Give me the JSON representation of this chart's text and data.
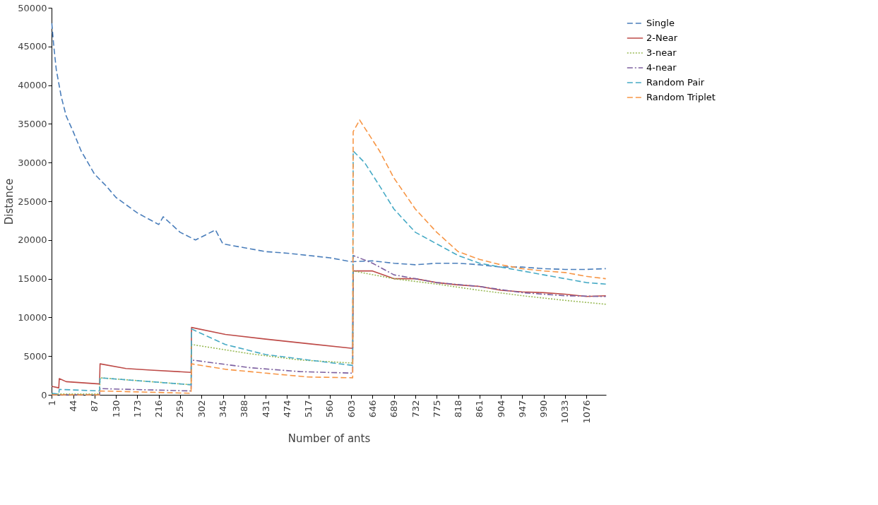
{
  "chart_data": {
    "type": "line",
    "xlabel": "Number of ants",
    "ylabel": "Distance",
    "xlim": [
      0.5,
      1115.5
    ],
    "xticks": [
      1,
      44,
      87,
      130,
      173,
      216,
      259,
      302,
      345,
      388,
      431,
      474,
      517,
      560,
      603,
      646,
      689,
      732,
      775,
      818,
      861,
      904,
      947,
      990,
      1033,
      1076
    ],
    "ylim": [
      0,
      50000
    ],
    "yticks": [
      0,
      5000,
      10000,
      15000,
      20000,
      25000,
      30000,
      35000,
      40000,
      45000,
      50000
    ],
    "grid": false,
    "legend": "right",
    "marker": "none",
    "series": [
      {
        "name": "Single",
        "color": "#4a7ebb",
        "line_style": "dashed",
        "x": [
          1,
          5,
          10,
          20,
          30,
          44,
          60,
          87,
          110,
          130,
          173,
          216,
          225,
          259,
          290,
          330,
          345,
          388,
          431,
          474,
          517,
          560,
          603,
          646,
          689,
          732,
          775,
          818,
          861,
          904,
          947,
          990,
          1033,
          1076,
          1115
        ],
        "values": [
          48000,
          45000,
          42000,
          38500,
          36000,
          34000,
          31500,
          28500,
          27000,
          25500,
          23500,
          22000,
          23000,
          21000,
          20000,
          21300,
          19500,
          19000,
          18500,
          18300,
          18000,
          17700,
          17200,
          17300,
          17000,
          16800,
          17000,
          17000,
          16800,
          16500,
          16500,
          16300,
          16200,
          16200,
          16300
        ]
      },
      {
        "name": "2-Near",
        "color": "#be4b48",
        "line_style": "solid",
        "x": [
          1,
          15,
          16,
          30,
          97,
          98,
          150,
          200,
          281,
          282,
          350,
          431,
          517,
          606,
          607,
          646,
          689,
          732,
          775,
          818,
          861,
          904,
          947,
          990,
          1033,
          1076,
          1115
        ],
        "values": [
          1100,
          900,
          2100,
          1700,
          1400,
          4000,
          3400,
          3200,
          2900,
          8700,
          7800,
          7200,
          6600,
          6000,
          16000,
          16000,
          15000,
          15000,
          14500,
          14200,
          14000,
          13500,
          13300,
          13200,
          13000,
          12700,
          12800
        ]
      },
      {
        "name": "3-near",
        "color": "#98b954",
        "line_style": "dotted",
        "x": [
          1,
          97,
          98,
          281,
          282,
          400,
          500,
          606,
          607,
          689,
          775,
          861,
          947,
          1033,
          1115
        ],
        "values": [
          100,
          100,
          2200,
          1300,
          6500,
          5300,
          4500,
          4100,
          16000,
          15000,
          14300,
          13500,
          12800,
          12200,
          11700
        ]
      },
      {
        "name": "4-near",
        "color": "#7d60a0",
        "line_style": "dashdot",
        "x": [
          1,
          97,
          98,
          281,
          282,
          400,
          500,
          606,
          607,
          646,
          689,
          775,
          861,
          947,
          1033,
          1115
        ],
        "values": [
          0,
          0,
          800,
          500,
          4500,
          3500,
          3000,
          2800,
          18000,
          17000,
          15500,
          14500,
          14000,
          13200,
          12800,
          12700
        ]
      },
      {
        "name": "Random Pair",
        "color": "#46aac5",
        "line_style": "dashed",
        "x": [
          1,
          15,
          16,
          97,
          98,
          281,
          282,
          350,
          431,
          517,
          606,
          607,
          630,
          660,
          689,
          732,
          775,
          818,
          861,
          904,
          947,
          990,
          1033,
          1076,
          1115
        ],
        "values": [
          200,
          100,
          700,
          500,
          2200,
          1300,
          8500,
          6500,
          5200,
          4500,
          3800,
          31500,
          30000,
          27000,
          24000,
          21000,
          19500,
          18000,
          17000,
          16500,
          16000,
          15500,
          15000,
          14500,
          14300
        ]
      },
      {
        "name": "Random Triplet",
        "color": "#f79646",
        "line_style": "dashed",
        "x": [
          1,
          97,
          98,
          281,
          282,
          350,
          431,
          517,
          606,
          607,
          620,
          630,
          660,
          689,
          732,
          775,
          818,
          861,
          904,
          947,
          990,
          1033,
          1076,
          1115
        ],
        "values": [
          0,
          0,
          500,
          200,
          4000,
          3300,
          2800,
          2300,
          2200,
          34000,
          35500,
          34500,
          31500,
          28000,
          24000,
          21000,
          18500,
          17500,
          16800,
          16300,
          16000,
          15800,
          15300,
          15000
        ]
      }
    ]
  }
}
